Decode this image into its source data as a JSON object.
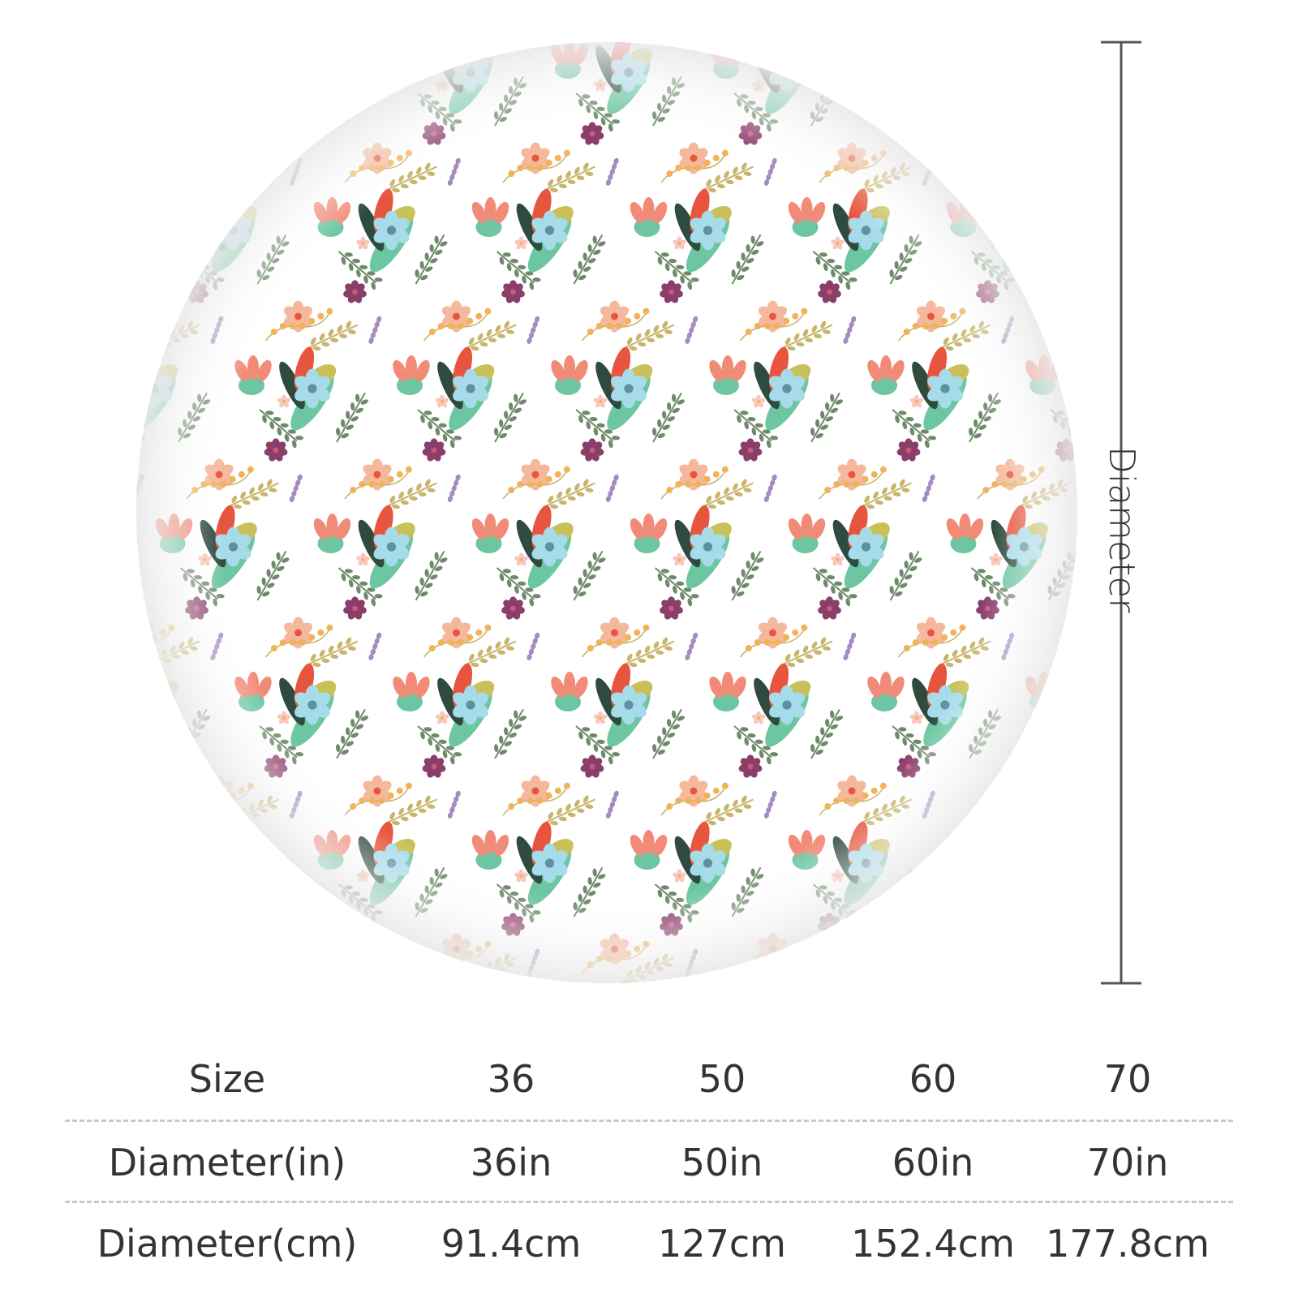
{
  "product": {
    "dimension_label": "Diameter",
    "pattern_icon": "floral-print-round-tablecloth-icon"
  },
  "size_table": {
    "rows": [
      {
        "label": "Size",
        "values": [
          "36",
          "50",
          "60",
          "70"
        ]
      },
      {
        "label": "Diameter(in)",
        "values": [
          "36in",
          "50in",
          "60in",
          "70in"
        ]
      },
      {
        "label": "Diameter(cm)",
        "values": [
          "91.4cm",
          "127cm",
          "152.4cm",
          "177.8cm"
        ]
      }
    ]
  },
  "colors": {
    "text": "#333333",
    "divider": "#c9c9c9",
    "dimension_line": "#555555",
    "cloth_background": "#ffffff",
    "teal_leaf": "#6cc6a2",
    "light_blue_flower": "#a6dcea",
    "coral_flower": "#f28a78",
    "red_petal": "#e8553f",
    "peach_flower": "#f6b89c",
    "plum_flower": "#8a3f6b",
    "olive_leaf": "#c9c05a",
    "golden_sprig": "#c8b46a",
    "dark_leaf": "#2f4a3e",
    "sage_stem": "#6e8a6a",
    "lavender": "#a48cc0",
    "berry_yellow": "#f0b35a"
  }
}
